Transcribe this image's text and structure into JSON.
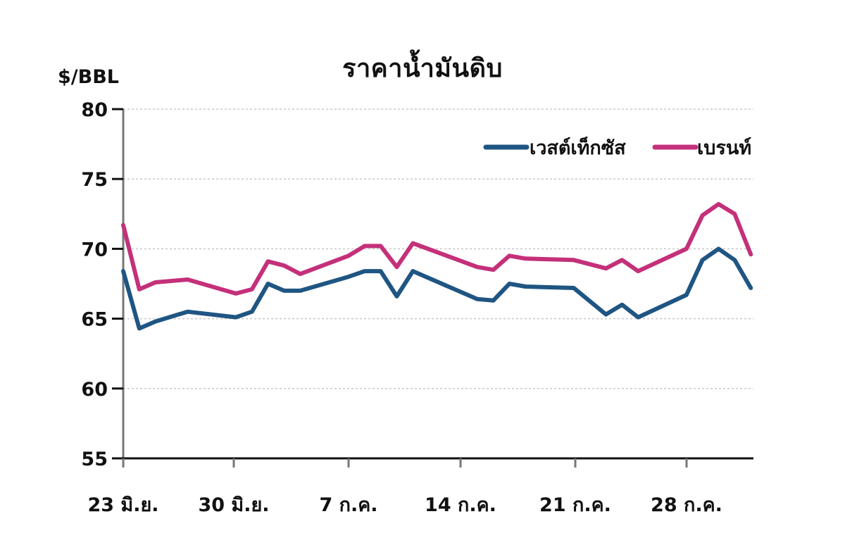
{
  "chart_data": {
    "type": "line",
    "title": "ราคาน้ำมันดิบ",
    "ylabel": "$/BBL",
    "xlabel": "",
    "ylim": [
      55,
      80
    ],
    "yticks": [
      55,
      60,
      65,
      70,
      75,
      80
    ],
    "grid": "horizontal dotted",
    "legend_position": "top-right",
    "x_tick_labels": [
      "23 มิ.ย.",
      "30 มิ.ย.",
      "7 ก.ค.",
      "14 ก.ค.",
      "21 ก.ค.",
      "28 ก.ค."
    ],
    "x": [
      0,
      1,
      2,
      4,
      7,
      8,
      9,
      10,
      11,
      14,
      15,
      16,
      17,
      18,
      22,
      23,
      24,
      25,
      28,
      30,
      31,
      32,
      35,
      36,
      37,
      38,
      39
    ],
    "x_note": "days since 23 มิ.ย.",
    "series": [
      {
        "name": "เวสต์เท็กซัส",
        "color": "#1f5582",
        "values": [
          68.4,
          64.3,
          64.8,
          65.5,
          65.1,
          65.5,
          67.5,
          67.0,
          67.0,
          68.0,
          68.4,
          68.4,
          66.6,
          68.4,
          66.4,
          66.3,
          67.5,
          67.3,
          67.2,
          65.3,
          66.0,
          65.1,
          66.7,
          69.2,
          70.0,
          69.2,
          67.2
        ]
      },
      {
        "name": "เบรนท์",
        "color": "#c4307a",
        "values": [
          71.7,
          67.1,
          67.6,
          67.8,
          66.8,
          67.1,
          69.1,
          68.8,
          68.2,
          69.5,
          70.2,
          70.2,
          68.7,
          70.4,
          68.7,
          68.5,
          69.5,
          69.3,
          69.2,
          68.6,
          69.2,
          68.4,
          70.0,
          72.4,
          73.2,
          72.5,
          69.6
        ]
      }
    ]
  }
}
